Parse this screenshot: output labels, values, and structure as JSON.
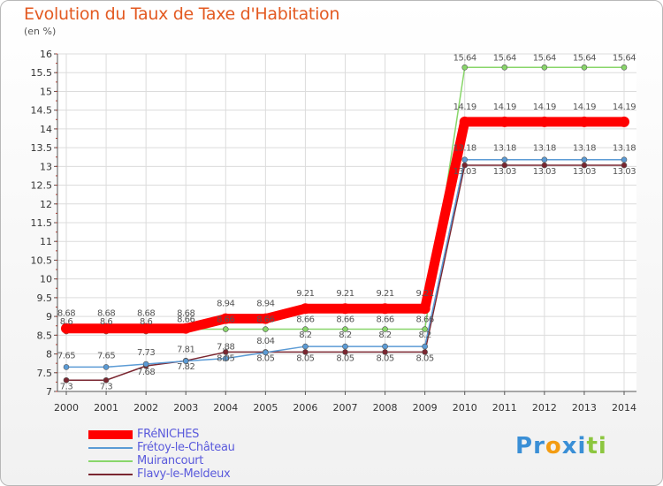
{
  "chart_data": {
    "type": "line",
    "title": "Evolution du Taux de Taxe d'Habitation",
    "subtitle": "(en %)",
    "x": [
      "2000",
      "2001",
      "2002",
      "2003",
      "2004",
      "2005",
      "2006",
      "2007",
      "2008",
      "2009",
      "2010",
      "2011",
      "2012",
      "2013",
      "2014"
    ],
    "y_ticks": [
      "7",
      "7.5",
      "8",
      "8.5",
      "9",
      "9.5",
      "10",
      "10.5",
      "11",
      "11.5",
      "12",
      "12.5",
      "13",
      "13.5",
      "14",
      "14.5",
      "15",
      "15.5",
      "16"
    ],
    "ylim": [
      7,
      16
    ],
    "grid": true,
    "legend_position": "bottom-left",
    "series": [
      {
        "name": "FRéNICHES",
        "color": "#ff0000",
        "values": [
          8.68,
          8.68,
          8.68,
          8.68,
          8.94,
          8.94,
          9.21,
          9.21,
          9.21,
          9.21,
          14.19,
          14.19,
          14.19,
          14.19,
          14.19
        ],
        "labels": [
          "8.68",
          "8.68",
          "8.68",
          "8.68",
          "8.94",
          "8.94",
          "9.21",
          "9.21",
          "9.21",
          "9.21",
          "14.19",
          "14.19",
          "14.19",
          "14.19",
          "14.19"
        ]
      },
      {
        "name": "Frétoy-le-Château",
        "color": "#5b9bd5",
        "values": [
          7.65,
          7.65,
          7.73,
          7.81,
          7.88,
          8.04,
          8.2,
          8.2,
          8.2,
          8.2,
          13.18,
          13.18,
          13.18,
          13.18,
          13.18
        ],
        "labels": [
          "7.65",
          "7.65",
          "7.73",
          "7.81",
          "7.88",
          "8.04",
          "8.2",
          "8.2",
          "8.2",
          "8.2",
          "13.18",
          "13.18",
          "13.18",
          "13.18",
          "13.18"
        ]
      },
      {
        "name": "Muirancourt",
        "color": "#88d66a",
        "values": [
          8.6,
          8.6,
          8.6,
          8.66,
          8.66,
          8.66,
          8.66,
          8.66,
          8.66,
          8.66,
          15.64,
          15.64,
          15.64,
          15.64,
          15.64
        ],
        "labels": [
          "8.6",
          "8.6",
          "8.6",
          "8.66",
          "8.66",
          "8.66",
          "8.66",
          "8.66",
          "8.66",
          "8.66",
          "15.64",
          "15.64",
          "15.64",
          "15.64",
          "15.64"
        ]
      },
      {
        "name": "Flavy-le-Meldeux",
        "color": "#7a2630",
        "values": [
          7.3,
          7.3,
          7.68,
          7.82,
          8.05,
          8.05,
          8.05,
          8.05,
          8.05,
          8.05,
          13.03,
          13.03,
          13.03,
          13.03,
          13.03
        ],
        "labels": [
          "7.3",
          "7.3",
          "7.68",
          "7.82",
          "8.05",
          "8.05",
          "8.05",
          "8.05",
          "8.05",
          "8.05",
          "13.03",
          "13.03",
          "13.03",
          "13.03",
          "13.03"
        ]
      }
    ]
  },
  "logo": {
    "letters": [
      "P",
      "r",
      "o",
      "x",
      "i",
      "t",
      "i"
    ],
    "colors": [
      "#3a8fd6",
      "#3a8fd6",
      "#f39c12",
      "#3a8fd6",
      "#3a8fd6",
      "#8cc63f",
      "#8cc63f"
    ]
  }
}
